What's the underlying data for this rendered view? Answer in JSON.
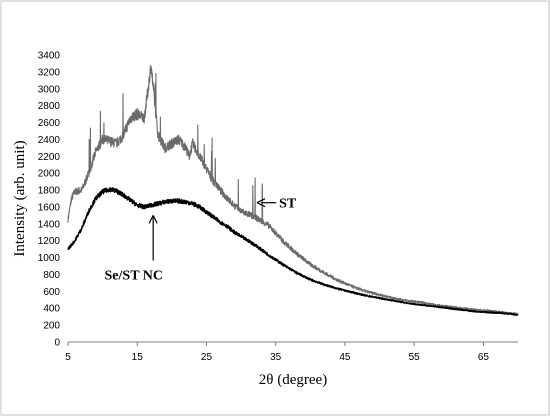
{
  "chart_data": {
    "type": "line",
    "title": "",
    "xlabel": "2θ (degree)",
    "ylabel": "Intensity (arb. unit)",
    "xlim": [
      5,
      70
    ],
    "ylim": [
      0,
      3400
    ],
    "xticks": [
      5,
      15,
      25,
      35,
      45,
      55,
      65
    ],
    "yticks": [
      0,
      200,
      400,
      600,
      800,
      1000,
      1200,
      1400,
      1600,
      1800,
      2000,
      2200,
      2400,
      2600,
      2800,
      3000,
      3200,
      3400
    ],
    "grid": "none",
    "frame": "border",
    "series": [
      {
        "name": "ST",
        "color": "#6b6b6b",
        "x": [
          5,
          5.5,
          6,
          7,
          8,
          9,
          10,
          11,
          12,
          13,
          14,
          15,
          16,
          16.5,
          17,
          17.5,
          18,
          19,
          20,
          21,
          22,
          22.5,
          23,
          24,
          25,
          26,
          27,
          28,
          29,
          30,
          32,
          34,
          36,
          38,
          40,
          42,
          44,
          46,
          48,
          50,
          52,
          54,
          56,
          58,
          60,
          62,
          64,
          66,
          68,
          70
        ],
        "y": [
          1450,
          1700,
          1780,
          1800,
          2000,
          2250,
          2400,
          2380,
          2350,
          2450,
          2650,
          2700,
          2650,
          2950,
          3280,
          2850,
          2450,
          2300,
          2350,
          2400,
          2300,
          2200,
          2350,
          2200,
          2050,
          1900,
          1800,
          1700,
          1620,
          1550,
          1480,
          1380,
          1200,
          1050,
          920,
          820,
          730,
          660,
          600,
          560,
          520,
          490,
          470,
          440,
          420,
          400,
          380,
          370,
          350,
          330
        ]
      },
      {
        "name": "Se/ST NC",
        "color": "#000000",
        "x": [
          5,
          6,
          7,
          8,
          9,
          10,
          11,
          12,
          13,
          14,
          15,
          16,
          17,
          18,
          19,
          20,
          21,
          22,
          23,
          24,
          25,
          26,
          27,
          28,
          29,
          30,
          32,
          34,
          36,
          38,
          40,
          42,
          44,
          46,
          48,
          50,
          52,
          54,
          56,
          58,
          60,
          62,
          64,
          66,
          68,
          70
        ],
        "y": [
          1100,
          1200,
          1350,
          1550,
          1700,
          1780,
          1810,
          1790,
          1740,
          1680,
          1620,
          1600,
          1620,
          1640,
          1660,
          1670,
          1670,
          1660,
          1640,
          1600,
          1540,
          1480,
          1420,
          1370,
          1300,
          1250,
          1150,
          1030,
          920,
          820,
          740,
          680,
          630,
          590,
          550,
          520,
          490,
          460,
          440,
          420,
          400,
          380,
          360,
          350,
          340,
          320
        ]
      }
    ],
    "annotations": [
      {
        "text": "ST",
        "x": 35.5,
        "y": 1650,
        "arrow_to": [
          32.3,
          1650
        ]
      },
      {
        "text": "Se/ST NC",
        "x": 14.5,
        "y": 800,
        "arrow_to": [
          17.3,
          1500
        ]
      }
    ]
  }
}
